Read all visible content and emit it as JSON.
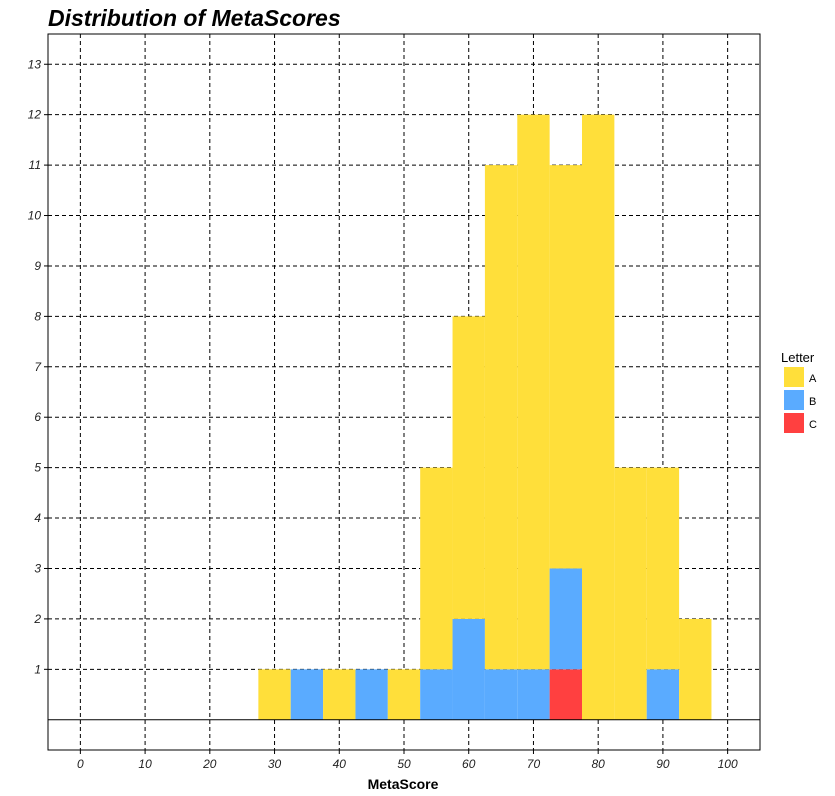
{
  "chart_data": {
    "type": "bar",
    "stacked": true,
    "title": "Distribution of MetaScores",
    "xlabel": "MetaScore",
    "ylabel": "",
    "xlim": [
      -5,
      105
    ],
    "ylim": [
      -0.6,
      13.6
    ],
    "xticks": [
      0,
      10,
      20,
      30,
      40,
      50,
      60,
      70,
      80,
      90,
      100
    ],
    "yticks": [
      1,
      2,
      3,
      4,
      5,
      6,
      7,
      8,
      9,
      10,
      11,
      12,
      13
    ],
    "bin_width": 5,
    "bins": [
      30,
      35,
      40,
      45,
      50,
      55,
      60,
      65,
      70,
      75,
      80,
      85,
      90,
      95
    ],
    "series": [
      {
        "name": "C",
        "color": "#ff4040",
        "values": [
          0,
          0,
          0,
          0,
          0,
          0,
          0,
          0,
          0,
          1,
          0,
          0,
          0,
          0
        ]
      },
      {
        "name": "B",
        "color": "#5aabff",
        "values": [
          0,
          1,
          0,
          1,
          0,
          1,
          2,
          1,
          1,
          2,
          0,
          0,
          1,
          0
        ]
      },
      {
        "name": "A",
        "color": "#ffdf3a",
        "values": [
          1,
          0,
          1,
          0,
          1,
          4,
          6,
          10,
          11,
          8,
          12,
          5,
          4,
          2
        ]
      }
    ],
    "legend": {
      "title": "Letter",
      "position": "right",
      "entries": [
        {
          "label": "A",
          "color": "#ffdf3a"
        },
        {
          "label": "B",
          "color": "#5aabff"
        },
        {
          "label": "C",
          "color": "#ff4040"
        }
      ]
    },
    "grid": true
  }
}
